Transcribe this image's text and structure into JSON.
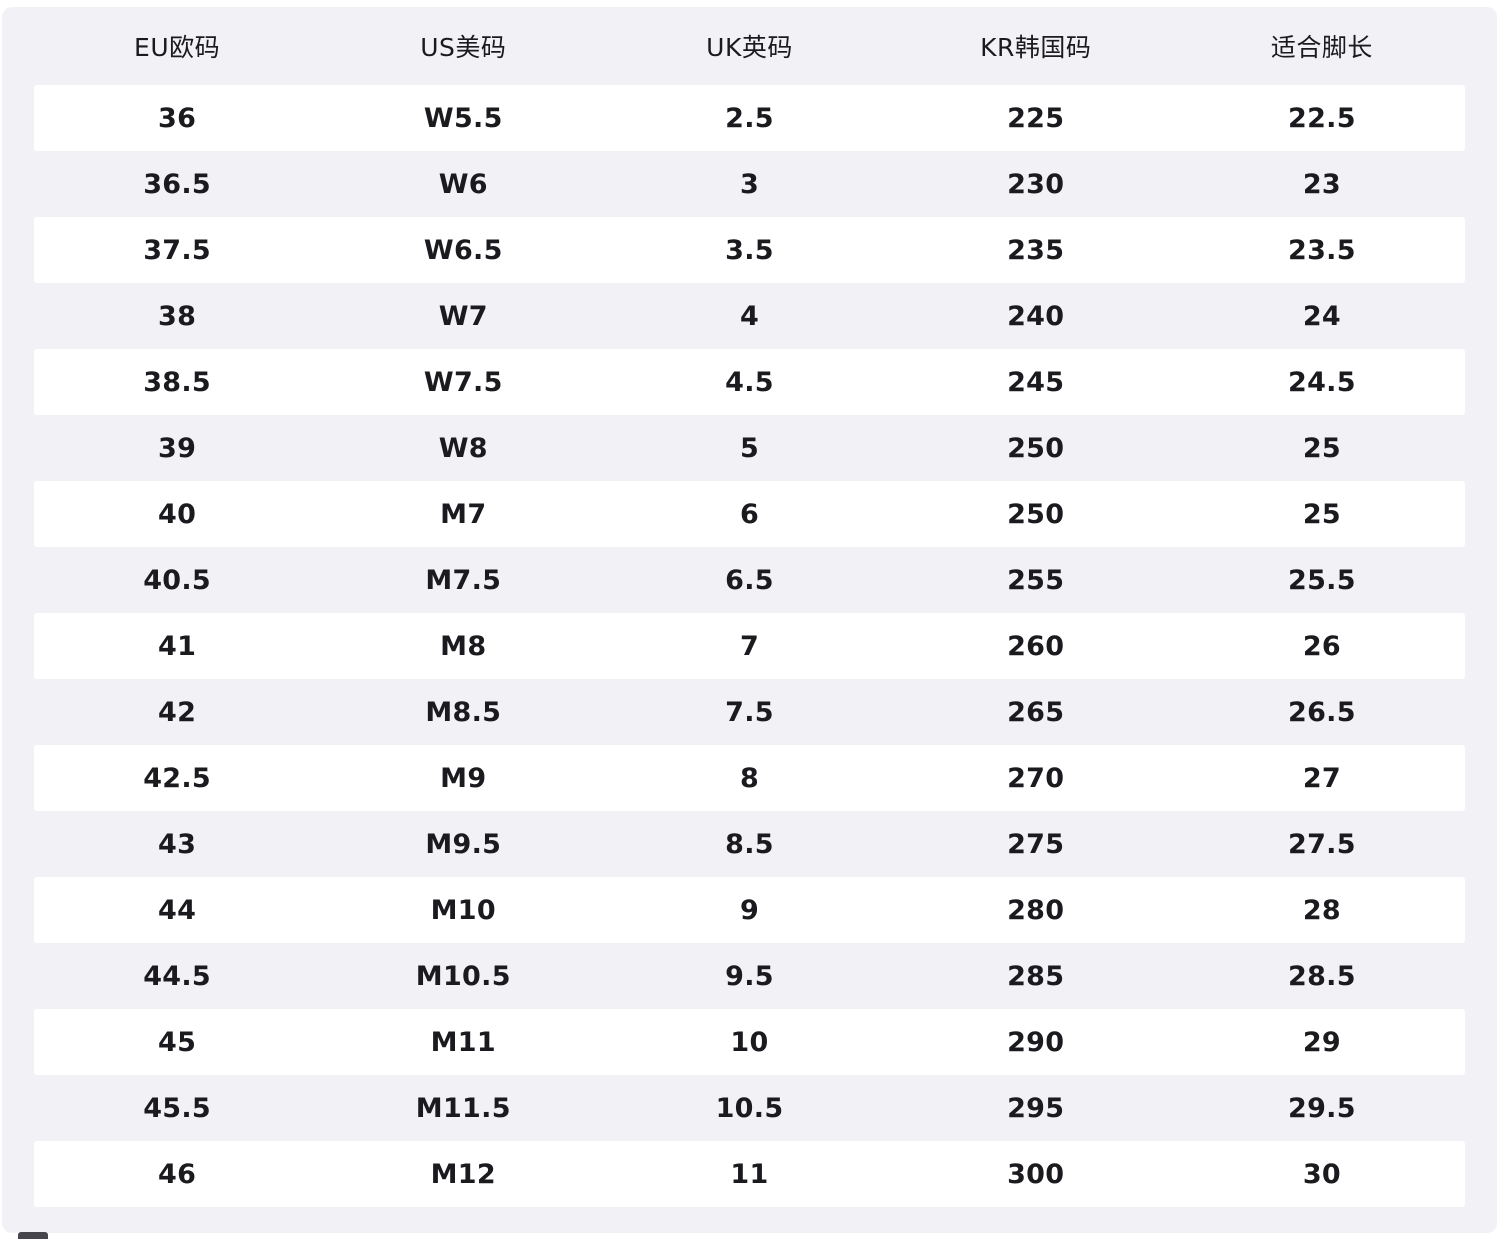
{
  "chart_data": {
    "type": "table",
    "title": "",
    "columns": [
      "EU欧码",
      "US美码",
      "UK英码",
      "KR韩国码",
      "适合脚长"
    ],
    "column_keys": [
      "eu",
      "us",
      "uk",
      "kr",
      "foot-length"
    ],
    "rows": [
      [
        "36",
        "W5.5",
        "2.5",
        "225",
        "22.5"
      ],
      [
        "36.5",
        "W6",
        "3",
        "230",
        "23"
      ],
      [
        "37.5",
        "W6.5",
        "3.5",
        "235",
        "23.5"
      ],
      [
        "38",
        "W7",
        "4",
        "240",
        "24"
      ],
      [
        "38.5",
        "W7.5",
        "4.5",
        "245",
        "24.5"
      ],
      [
        "39",
        "W8",
        "5",
        "250",
        "25"
      ],
      [
        "40",
        "M7",
        "6",
        "250",
        "25"
      ],
      [
        "40.5",
        "M7.5",
        "6.5",
        "255",
        "25.5"
      ],
      [
        "41",
        "M8",
        "7",
        "260",
        "26"
      ],
      [
        "42",
        "M8.5",
        "7.5",
        "265",
        "26.5"
      ],
      [
        "42.5",
        "M9",
        "8",
        "270",
        "27"
      ],
      [
        "43",
        "M9.5",
        "8.5",
        "275",
        "27.5"
      ],
      [
        "44",
        "M10",
        "9",
        "280",
        "28"
      ],
      [
        "44.5",
        "M10.5",
        "9.5",
        "285",
        "28.5"
      ],
      [
        "45",
        "M11",
        "10",
        "290",
        "29"
      ],
      [
        "45.5",
        "M11.5",
        "10.5",
        "295",
        "29.5"
      ],
      [
        "46",
        "M12",
        "11",
        "300",
        "30"
      ]
    ],
    "layout_hints": {
      "row_striping": "odd rows white, even rows panel-gray, first data row white",
      "alignment": "center",
      "grid": false
    }
  },
  "colors": {
    "page_bg": "#ffffff",
    "panel_bg": "#f2f2f6",
    "row_white_bg": "#ffffff",
    "text_color": "#1b1b1f",
    "artifact_color": "#45454b"
  }
}
